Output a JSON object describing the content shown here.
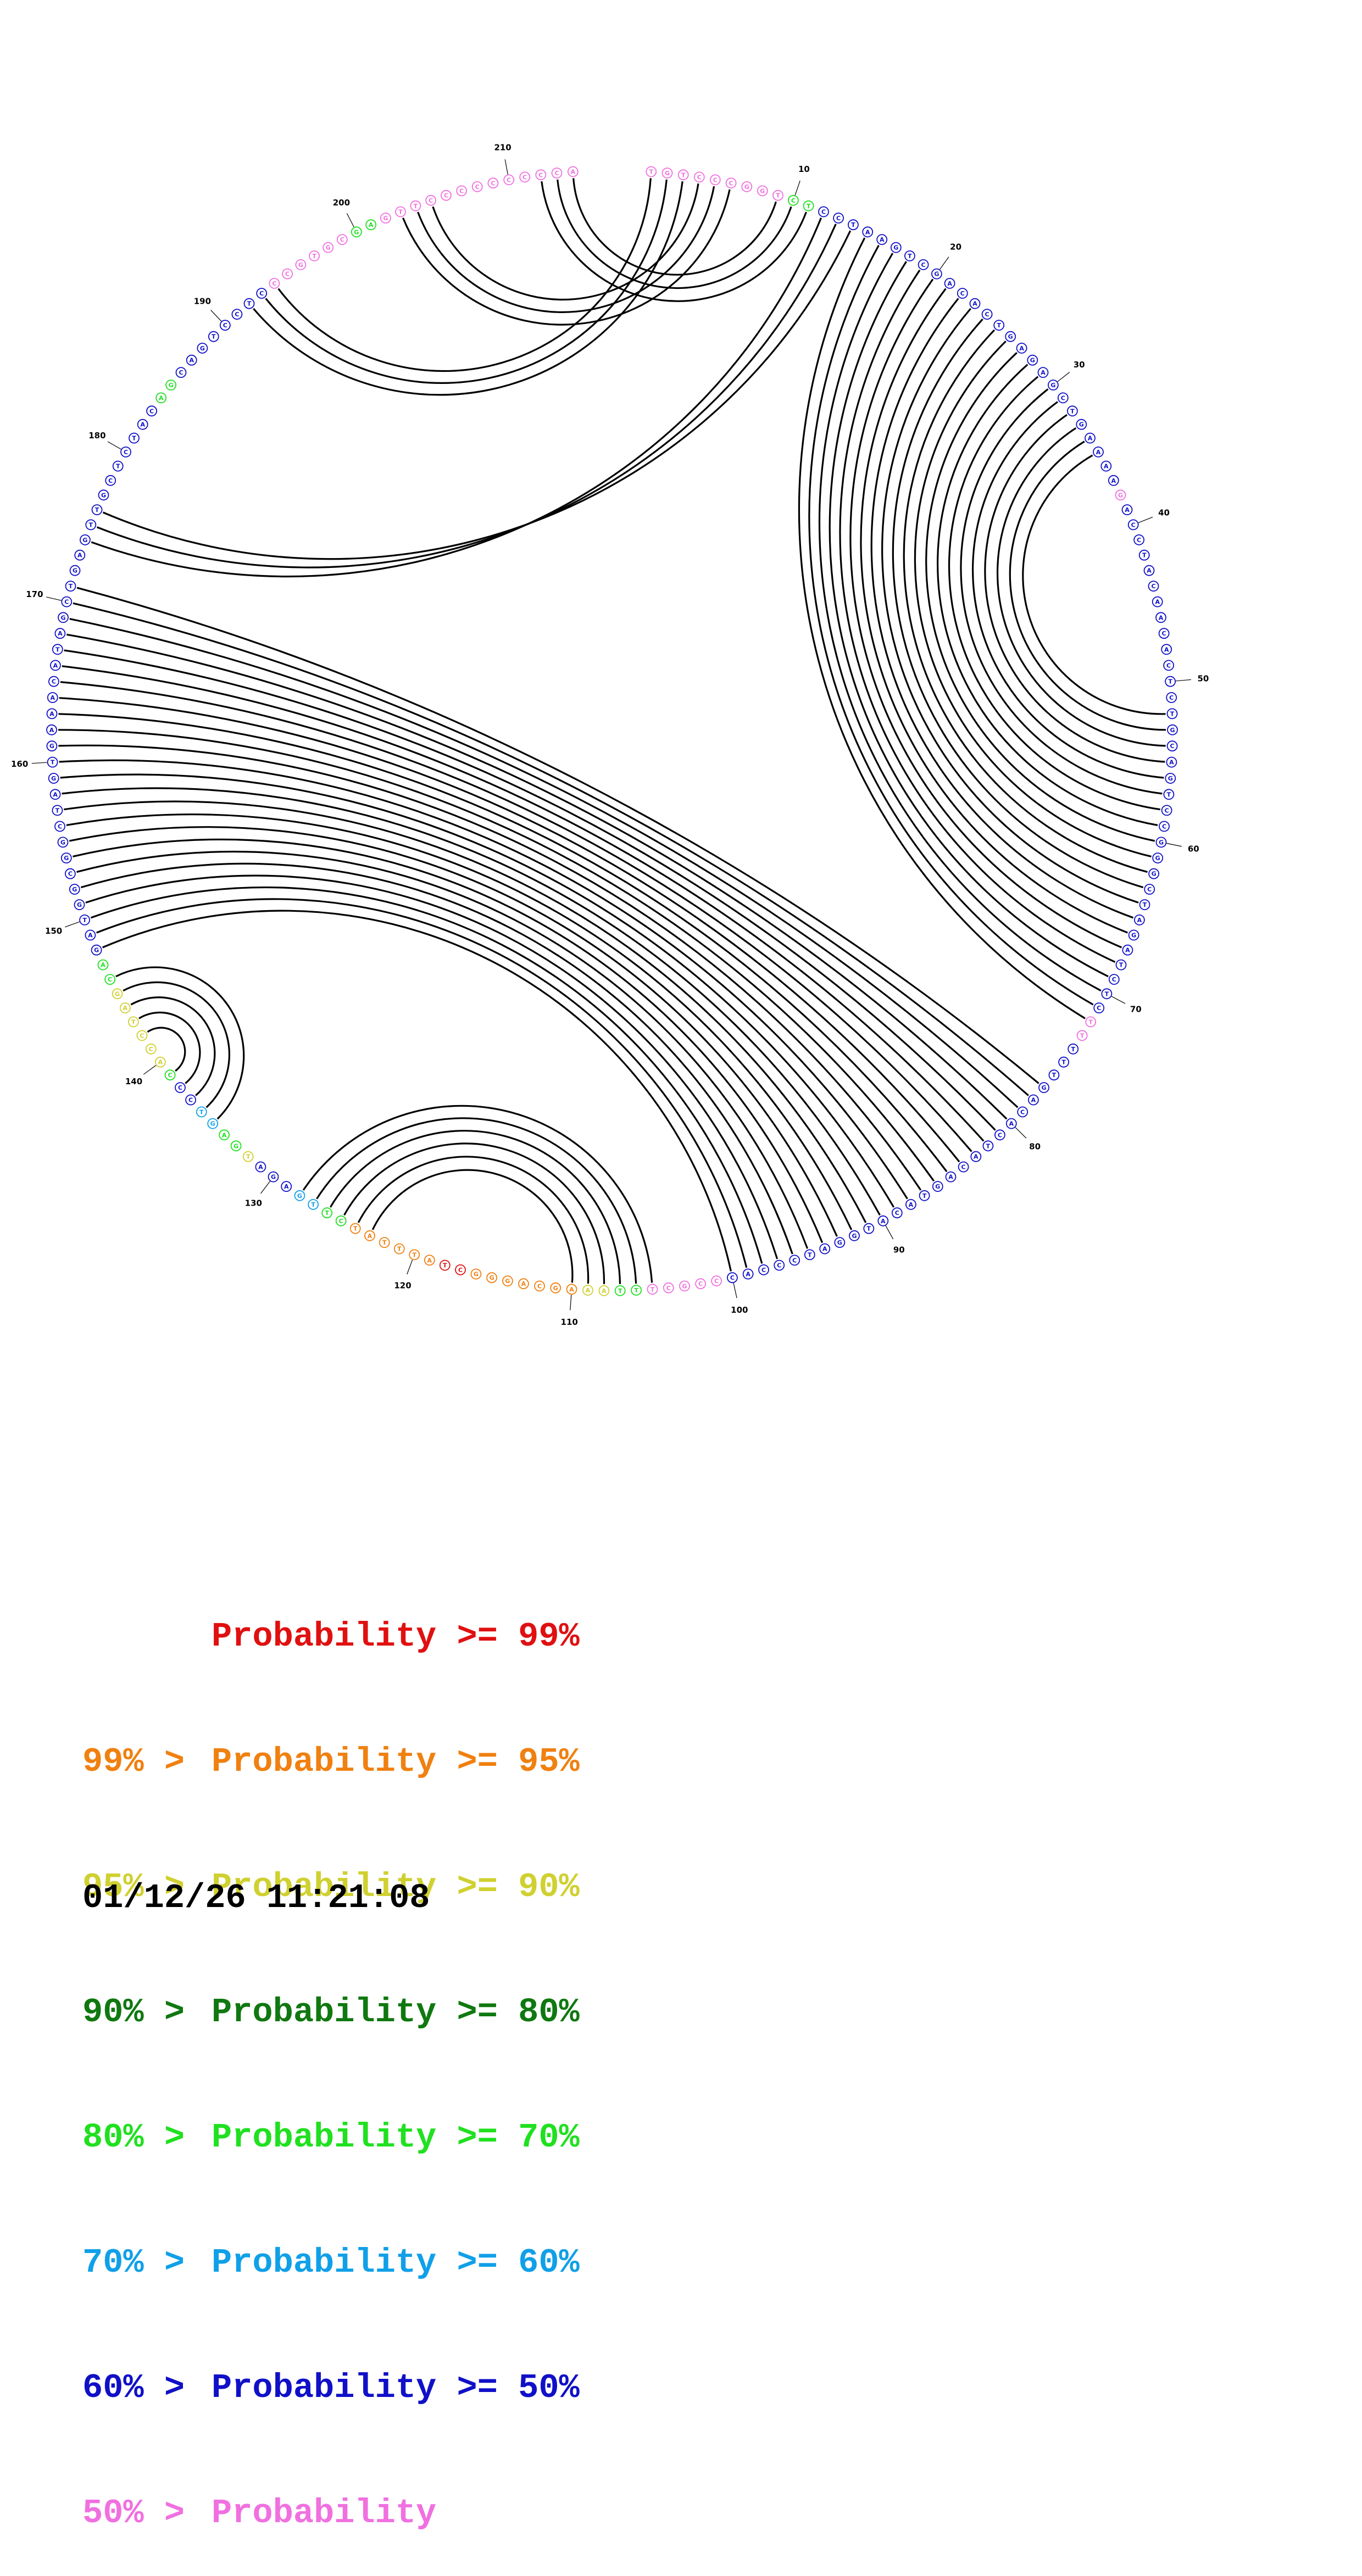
{
  "legend": [
    {
      "prefix": "",
      "label": "Probability",
      "suffix": ">= 99%",
      "color": "#e01010"
    },
    {
      "prefix": "99% >",
      "label": "Probability",
      "suffix": ">= 95%",
      "color": "#f08010"
    },
    {
      "prefix": "95% >",
      "label": "Probability",
      "suffix": ">= 90%",
      "color": "#d0d030"
    },
    {
      "prefix": "90% >",
      "label": "Probability",
      "suffix": ">= 80%",
      "color": "#107810"
    },
    {
      "prefix": "80% >",
      "label": "Probability",
      "suffix": ">= 70%",
      "color": "#20e020"
    },
    {
      "prefix": "70% >",
      "label": "Probability",
      "suffix": ">= 60%",
      "color": "#10a0e8"
    },
    {
      "prefix": "60% >",
      "label": "Probability",
      "suffix": ">= 50%",
      "color": "#1010c8"
    },
    {
      "prefix": "50% >",
      "label": "Probability",
      "suffix": "",
      "color": "#f070e0"
    }
  ],
  "timestamp": "01/12/26 11:21:08",
  "sequence": "TGTCCCGGTCTCCTAAGTCGACACTGAGAGCTGAAAAGACCTACAACACTCTGCAGTCCGGGCTAGATCTCTTTTTGACACTACAGTACATGGATCCCACCCGCTTTAAAGCAGGGCTATTTATCTTGAGATGAGTCCCACCTAGCAGATGGCGGCTAGTGAAACATAGCTGAGTTGCTCTACAGCAGTCCTCCCGTGCGAGTTCCCCCCCCCA",
  "position_labels": [
    10,
    20,
    30,
    40,
    50,
    60,
    70,
    80,
    90,
    100,
    110,
    120,
    130,
    140,
    150,
    160,
    170,
    180,
    190,
    200,
    210
  ],
  "base_pairs": [
    [
      9,
      214
    ],
    [
      10,
      213
    ],
    [
      11,
      212
    ],
    [
      4,
      205
    ],
    [
      5,
      204
    ],
    [
      6,
      203
    ],
    [
      1,
      194
    ],
    [
      2,
      193
    ],
    [
      3,
      192
    ],
    [
      12,
      174
    ],
    [
      13,
      175
    ],
    [
      14,
      176
    ],
    [
      15,
      72
    ],
    [
      16,
      71
    ],
    [
      17,
      70
    ],
    [
      18,
      69
    ],
    [
      19,
      68
    ],
    [
      20,
      67
    ],
    [
      21,
      66
    ],
    [
      22,
      65
    ],
    [
      23,
      64
    ],
    [
      24,
      63
    ],
    [
      25,
      62
    ],
    [
      26,
      61
    ],
    [
      27,
      60
    ],
    [
      28,
      59
    ],
    [
      29,
      58
    ],
    [
      30,
      57
    ],
    [
      31,
      56
    ],
    [
      32,
      55
    ],
    [
      33,
      54
    ],
    [
      34,
      53
    ],
    [
      35,
      52
    ],
    [
      77,
      171
    ],
    [
      78,
      170
    ],
    [
      79,
      169
    ],
    [
      80,
      168
    ],
    [
      81,
      167
    ],
    [
      82,
      166
    ],
    [
      83,
      165
    ],
    [
      84,
      164
    ],
    [
      85,
      163
    ],
    [
      86,
      162
    ],
    [
      87,
      161
    ],
    [
      88,
      160
    ],
    [
      89,
      159
    ],
    [
      90,
      158
    ],
    [
      91,
      157
    ],
    [
      92,
      156
    ],
    [
      93,
      155
    ],
    [
      94,
      154
    ],
    [
      95,
      153
    ],
    [
      96,
      152
    ],
    [
      97,
      151
    ],
    [
      98,
      150
    ],
    [
      99,
      149
    ],
    [
      100,
      148
    ],
    [
      105,
      128
    ],
    [
      106,
      127
    ],
    [
      107,
      126
    ],
    [
      108,
      125
    ],
    [
      109,
      124
    ],
    [
      110,
      123
    ],
    [
      135,
      146
    ],
    [
      136,
      145
    ],
    [
      137,
      144
    ],
    [
      138,
      143
    ],
    [
      139,
      142
    ]
  ],
  "base_colors": {
    "A": "#1010c8",
    "C": "#1010c8",
    "G": "#1010c8",
    "T": "#1010c8"
  },
  "probability_classes": "MMMMMMMMMGGBBBBBBBBBBBBBBBBBBBBBBBBBBMBBBBBBBBBBBBBBBBBBBBBBBBBBBBBBBBBMMBBBBBBBBBBBBBBBBBBBBBBBBBBBMMMMMGGYYOOOOOOORROOOOOOGGLLBBBYGGLLBBGYYYYYYGGBBBBBBBBBBBBBBBBBBBBBBBBBBBBBBBBBBBBGGBBBBBBBBMMMMMMGGMMMMMMMMMMMMMMMMMMMMMMMMMMMR"
}
